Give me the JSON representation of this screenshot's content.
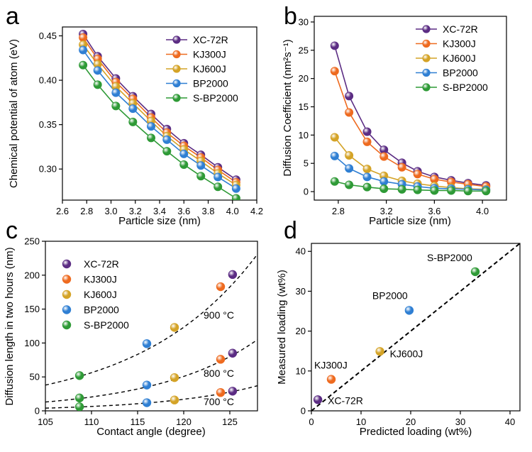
{
  "colors": {
    "XC-72R": "#5b2c83",
    "KJ300J": "#ee6a1f",
    "KJ600J": "#d4a326",
    "BP2000": "#2f7fd3",
    "S-BP2000": "#2e9a36",
    "axis": "#000000",
    "fit_line": "#000000"
  },
  "chart_data": [
    {
      "panel": "a",
      "type": "line",
      "xlabel": "Particle size (nm)",
      "ylabel": "Chemical potential of atom (eV)",
      "xlim": [
        2.6,
        4.2
      ],
      "ylim": [
        0.265,
        0.46
      ],
      "xticks": [
        2.6,
        2.8,
        3.0,
        3.2,
        3.4,
        3.6,
        3.8,
        4.0,
        4.2
      ],
      "yticks": [
        0.3,
        0.35,
        0.4,
        0.45
      ],
      "legend_position": "top-right",
      "x": [
        2.77,
        2.89,
        3.04,
        3.18,
        3.33,
        3.46,
        3.6,
        3.74,
        3.88,
        4.03
      ],
      "series": [
        {
          "name": "XC-72R",
          "values": [
            0.452,
            0.427,
            0.402,
            0.382,
            0.362,
            0.345,
            0.329,
            0.316,
            0.302,
            0.288
          ]
        },
        {
          "name": "KJ300J",
          "values": [
            0.448,
            0.424,
            0.398,
            0.379,
            0.358,
            0.341,
            0.326,
            0.313,
            0.299,
            0.285
          ]
        },
        {
          "name": "KJ600J",
          "values": [
            0.44,
            0.418,
            0.393,
            0.374,
            0.354,
            0.337,
            0.322,
            0.309,
            0.295,
            0.282
          ]
        },
        {
          "name": "BP2000",
          "values": [
            0.434,
            0.411,
            0.386,
            0.368,
            0.348,
            0.333,
            0.317,
            0.304,
            0.291,
            0.278
          ]
        },
        {
          "name": "S-BP2000",
          "values": [
            0.417,
            0.395,
            0.371,
            0.353,
            0.335,
            0.32,
            0.305,
            0.292,
            0.28,
            0.267
          ]
        }
      ]
    },
    {
      "panel": "b",
      "type": "line",
      "xlabel": "Particle size (nm)",
      "ylabel": "Diffusion Coefficient (nm²s⁻¹)",
      "xlim": [
        2.6,
        4.2
      ],
      "ylim": [
        -1.5,
        31
      ],
      "xticks": [
        2.8,
        3.2,
        3.6,
        4.0
      ],
      "yticks": [
        0,
        5,
        10,
        15,
        20,
        25,
        30
      ],
      "legend_position": "top-right",
      "x": [
        2.77,
        2.89,
        3.04,
        3.18,
        3.33,
        3.46,
        3.6,
        3.74,
        3.88,
        4.03
      ],
      "series": [
        {
          "name": "XC-72R",
          "values": [
            25.8,
            16.9,
            10.6,
            7.4,
            5.1,
            3.6,
            2.6,
            2.0,
            1.5,
            1.1
          ]
        },
        {
          "name": "KJ300J",
          "values": [
            21.3,
            14.0,
            8.8,
            6.2,
            4.3,
            3.1,
            2.2,
            1.7,
            1.3,
            0.9
          ]
        },
        {
          "name": "KJ600J",
          "values": [
            9.6,
            6.4,
            4.0,
            2.8,
            1.9,
            1.4,
            1.0,
            0.7,
            0.5,
            0.4
          ]
        },
        {
          "name": "BP2000",
          "values": [
            6.3,
            4.1,
            2.6,
            1.8,
            1.3,
            0.9,
            0.6,
            0.5,
            0.4,
            0.3
          ]
        },
        {
          "name": "S-BP2000",
          "values": [
            1.8,
            1.2,
            0.8,
            0.5,
            0.4,
            0.3,
            0.2,
            0.2,
            0.1,
            0.1
          ]
        }
      ]
    },
    {
      "panel": "c",
      "type": "scatter",
      "xlabel": "Contact angle (degree)",
      "ylabel": "Diffusion length in two hours (nm)",
      "xlim": [
        105,
        128
      ],
      "ylim": [
        0,
        250
      ],
      "xticks": [
        105,
        110,
        115,
        120,
        125
      ],
      "yticks": [
        0,
        50,
        100,
        150,
        200,
        250
      ],
      "legend_position": "top-left",
      "legend": [
        "XC-72R",
        "KJ300J",
        "KJ600J",
        "BP2000",
        "S-BP2000"
      ],
      "series": [
        {
          "name": "XC-72R",
          "points": [
            [
              125.3,
              201
            ],
            [
              125.3,
              85
            ],
            [
              125.3,
              29
            ]
          ]
        },
        {
          "name": "KJ300J",
          "points": [
            [
              124.0,
              183
            ],
            [
              124.0,
              76
            ],
            [
              124.0,
              27
            ]
          ]
        },
        {
          "name": "KJ600J",
          "points": [
            [
              119.0,
              123
            ],
            [
              119.0,
              49
            ],
            [
              119.0,
              16
            ]
          ]
        },
        {
          "name": "BP2000",
          "points": [
            [
              116.0,
              99
            ],
            [
              116.0,
              38
            ],
            [
              116.0,
              12
            ]
          ]
        },
        {
          "name": "S-BP2000",
          "points": [
            [
              108.7,
              52
            ],
            [
              108.7,
              19
            ],
            [
              108.7,
              6
            ]
          ]
        }
      ],
      "fit_lines": [
        {
          "label": "900 °C",
          "start": [
            105,
            38
          ],
          "end": [
            128,
            231
          ]
        },
        {
          "label": "800 °C",
          "start": [
            105,
            13
          ],
          "end": [
            128,
            105
          ]
        },
        {
          "label": "700 °C",
          "start": [
            105,
            4
          ],
          "end": [
            128,
            37
          ]
        }
      ]
    },
    {
      "panel": "d",
      "type": "scatter",
      "xlabel": "Predicted loading (wt%)",
      "ylabel": "Measured loading (wt%)",
      "xlim": [
        0,
        42
      ],
      "ylim": [
        0,
        42
      ],
      "xticks": [
        0,
        10,
        20,
        30,
        40
      ],
      "yticks": [
        0,
        10,
        20,
        30,
        40
      ],
      "points": [
        {
          "name": "XC-72R",
          "x": 1.3,
          "y": 2.8
        },
        {
          "name": "KJ300J",
          "x": 4.0,
          "y": 7.9
        },
        {
          "name": "KJ600J",
          "x": 13.8,
          "y": 14.9
        },
        {
          "name": "BP2000",
          "x": 19.7,
          "y": 25.2
        },
        {
          "name": "S-BP2000",
          "x": 33.0,
          "y": 34.9
        }
      ],
      "reference_line": {
        "start": [
          0,
          0
        ],
        "end": [
          42,
          42
        ]
      }
    }
  ]
}
